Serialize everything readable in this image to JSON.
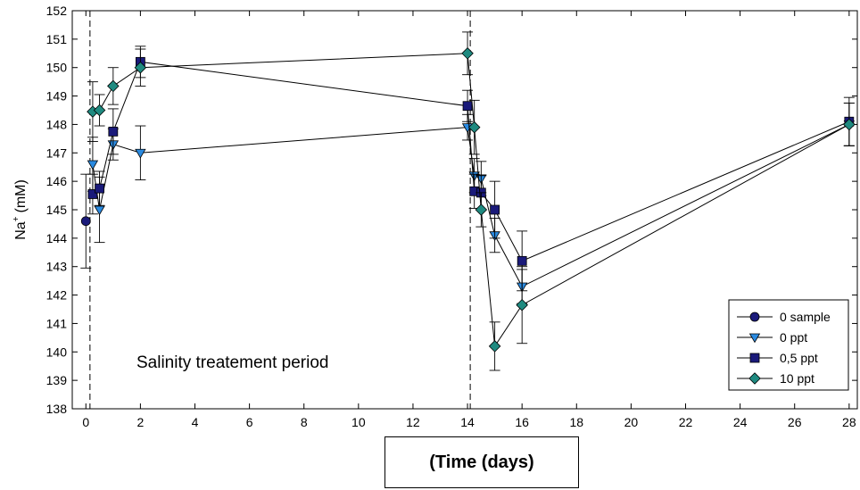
{
  "chart_data": {
    "type": "line",
    "xlabel": "(Time (days)",
    "ylabel": "Na",
    "ylabel_sup": "+",
    "ylabel_unit": "(mM)",
    "xlim": [
      -0.5,
      28.3
    ],
    "ylim": [
      138,
      152
    ],
    "xticks": [
      0,
      2,
      4,
      6,
      8,
      10,
      12,
      14,
      16,
      18,
      20,
      22,
      24,
      26,
      28
    ],
    "yticks": [
      138,
      139,
      140,
      141,
      142,
      143,
      144,
      145,
      146,
      147,
      148,
      149,
      150,
      151,
      152
    ],
    "vlines": [
      0.15,
      14.1
    ],
    "annotation": "Salinity treatement period",
    "legend_position": "bottom-right",
    "series": [
      {
        "name": "0 sample",
        "marker": "circle",
        "color": "#1a1a7a",
        "x": [
          0
        ],
        "y": [
          144.6
        ],
        "err": [
          1.65
        ]
      },
      {
        "name": "0 ppt",
        "marker": "triangle-down",
        "color": "#2a8ae0",
        "x": [
          0.25,
          0.5,
          1,
          2,
          14,
          14.25,
          14.5,
          15,
          16,
          28
        ],
        "y": [
          146.6,
          145.0,
          147.3,
          147.0,
          147.9,
          146.2,
          146.1,
          144.1,
          142.3,
          148.0
        ],
        "err": [
          0.95,
          1.15,
          0.55,
          0.95,
          0.45,
          0.6,
          0.6,
          0.6,
          0.6,
          0.75
        ]
      },
      {
        "name": "0,5 ppt",
        "marker": "square",
        "color": "#1a1a7a",
        "x": [
          0.25,
          0.5,
          1,
          2,
          14,
          14.25,
          14.5,
          15,
          16,
          28
        ],
        "y": [
          145.55,
          145.75,
          147.75,
          150.2,
          148.65,
          145.65,
          145.6,
          145.0,
          143.2,
          148.1
        ],
        "err": [
          0.7,
          0.6,
          0.8,
          0.55,
          0.55,
          0.6,
          0.6,
          1.0,
          1.05,
          0.85
        ]
      },
      {
        "name": "10 ppt",
        "marker": "diamond",
        "color": "#1f8a80",
        "x": [
          0.25,
          0.5,
          1,
          2,
          14,
          14.25,
          14.5,
          15,
          16,
          28
        ],
        "y": [
          148.45,
          148.5,
          149.35,
          150.0,
          150.5,
          147.9,
          145.0,
          140.2,
          141.65,
          148.0
        ],
        "err": [
          1.05,
          0.55,
          0.65,
          0.65,
          0.75,
          0.95,
          0.6,
          0.85,
          1.35,
          0.75
        ]
      }
    ]
  }
}
